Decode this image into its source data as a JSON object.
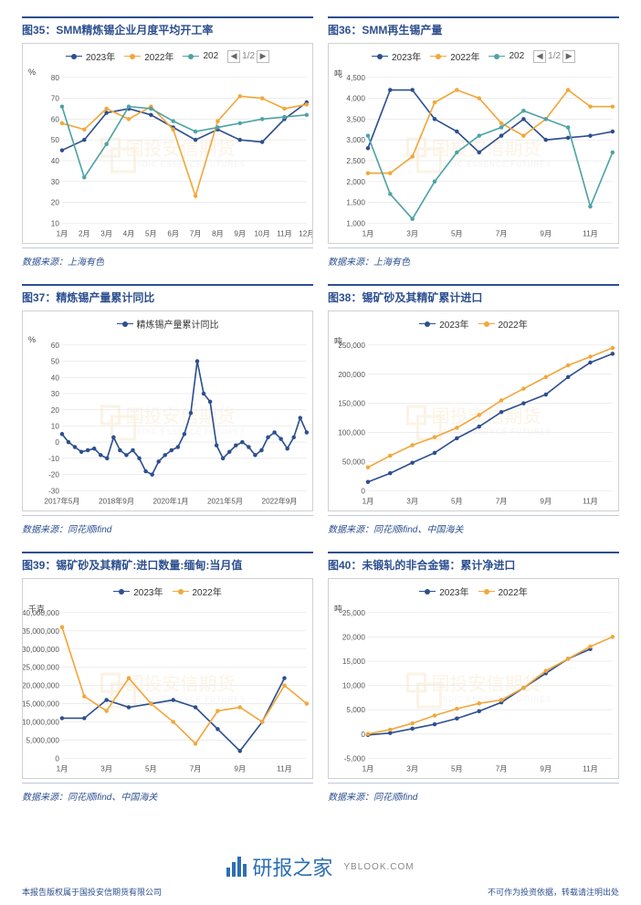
{
  "watermark": {
    "text": "国投安信期货",
    "sub": "SDIC ESSENCE FUTURES"
  },
  "footer": {
    "brand": "研报之家",
    "url": "YBLOOK.COM",
    "left": "本报告版权属于国投安信期货有限公司",
    "right": "不可作为投资依据，转载请注明出处"
  },
  "charts": [
    {
      "id": "c35",
      "title": "图35：SMM精炼锡企业月度平均开工率",
      "source": "数据来源：上海有色",
      "unit": "%",
      "pager": "1/2",
      "legend": [
        {
          "label": "2023年",
          "color": "#2d4f8f"
        },
        {
          "label": "2022年",
          "color": "#f2a73b"
        },
        {
          "label": "202",
          "color": "#4fa3a5"
        }
      ],
      "x_labels": [
        "1月",
        "2月",
        "3月",
        "4月",
        "5月",
        "6月",
        "7月",
        "8月",
        "9月",
        "10月",
        "11月",
        "12月"
      ],
      "ylim": [
        10,
        80
      ],
      "yticks": [
        10,
        20,
        30,
        40,
        50,
        60,
        70,
        80
      ],
      "grid_color": "#e6e6e6",
      "bg": "#ffffff",
      "series": [
        {
          "color": "#2d4f8f",
          "values": [
            45,
            50,
            63,
            65,
            62,
            56,
            50,
            55,
            50,
            49,
            60,
            68
          ]
        },
        {
          "color": "#f2a73b",
          "values": [
            58,
            55,
            65,
            60,
            66,
            55,
            23,
            59,
            71,
            70,
            65,
            67
          ]
        },
        {
          "color": "#4fa3a5",
          "values": [
            66,
            32,
            48,
            66,
            65,
            59,
            54,
            56,
            58,
            60,
            61,
            62
          ]
        }
      ]
    },
    {
      "id": "c36",
      "title": "图36：SMM再生锡产量",
      "source": "数据来源：上海有色",
      "unit": "吨",
      "pager": "1/2",
      "legend": [
        {
          "label": "2023年",
          "color": "#2d4f8f"
        },
        {
          "label": "2022年",
          "color": "#f2a73b"
        },
        {
          "label": "202",
          "color": "#4fa3a5"
        }
      ],
      "x_labels": [
        "1月",
        "",
        "3月",
        "",
        "5月",
        "",
        "7月",
        "",
        "9月",
        "",
        "11月",
        ""
      ],
      "ylim": [
        1000,
        4500
      ],
      "yticks": [
        1000,
        1500,
        2000,
        2500,
        3000,
        3500,
        4000,
        4500
      ],
      "grid_color": "#e6e6e6",
      "bg": "#ffffff",
      "series": [
        {
          "color": "#2d4f8f",
          "values": [
            2800,
            4200,
            4200,
            3500,
            3200,
            2700,
            3100,
            3500,
            3000,
            3050,
            3100,
            3200
          ]
        },
        {
          "color": "#f2a73b",
          "values": [
            2200,
            2200,
            2600,
            3900,
            4200,
            4000,
            3400,
            3100,
            3500,
            4200,
            3800,
            3800
          ]
        },
        {
          "color": "#4fa3a5",
          "values": [
            3100,
            1700,
            1100,
            2000,
            2700,
            3100,
            3300,
            3700,
            3500,
            3300,
            1400,
            2700
          ]
        }
      ]
    },
    {
      "id": "c37",
      "title": "图37：精炼锡产量累计同比",
      "source": "数据来源：同花顺ifind",
      "unit": "%",
      "pager": null,
      "legend": [
        {
          "label": "精炼锡产量累计同比",
          "color": "#2d4f8f"
        }
      ],
      "x_labels": [
        "2017年5月",
        "",
        "2018年9月",
        "",
        "2020年1月",
        "",
        "2021年5月",
        "",
        "2022年9月",
        ""
      ],
      "ylim": [
        -30,
        60
      ],
      "yticks": [
        -30,
        -20,
        -10,
        0,
        10,
        20,
        30,
        40,
        50,
        60
      ],
      "grid_color": "#e6e6e6",
      "bg": "#ffffff",
      "series": [
        {
          "color": "#2d4f8f",
          "values": [
            5,
            0,
            -3,
            -6,
            -5,
            -4,
            -8,
            -10,
            3,
            -5,
            -8,
            -5,
            -10,
            -18,
            -20,
            -12,
            -8,
            -5,
            -3,
            5,
            18,
            50,
            30,
            25,
            -2,
            -10,
            -6,
            -2,
            0,
            -3,
            -8,
            -5,
            3,
            6,
            2,
            -4,
            3,
            15,
            6
          ]
        }
      ]
    },
    {
      "id": "c38",
      "title": "图38：锡矿砂及其精矿累计进口",
      "source": "数据来源：同花顺ifind、中国海关",
      "unit": "吨",
      "pager": null,
      "legend": [
        {
          "label": "2023年",
          "color": "#2d4f8f"
        },
        {
          "label": "2022年",
          "color": "#f2a73b"
        }
      ],
      "x_labels": [
        "1月",
        "",
        "3月",
        "",
        "5月",
        "",
        "7月",
        "",
        "9月",
        "",
        "11月",
        ""
      ],
      "ylim": [
        0,
        250000
      ],
      "yticks": [
        0,
        50000,
        100000,
        150000,
        200000,
        250000
      ],
      "grid_color": "#e6e6e6",
      "bg": "#ffffff",
      "series": [
        {
          "color": "#2d4f8f",
          "values": [
            15000,
            30000,
            48000,
            65000,
            90000,
            110000,
            135000,
            150000,
            165000,
            195000,
            220000,
            235000
          ]
        },
        {
          "color": "#f2a73b",
          "values": [
            40000,
            60000,
            78000,
            92000,
            108000,
            130000,
            155000,
            175000,
            195000,
            215000,
            230000,
            245000
          ]
        }
      ]
    },
    {
      "id": "c39",
      "title": "图39：锡矿砂及其精矿:进口数量:缅甸:当月值",
      "source": "数据来源：同花顺ifind、中国海关",
      "unit": "千克",
      "pager": null,
      "legend": [
        {
          "label": "2023年",
          "color": "#2d4f8f"
        },
        {
          "label": "2022年",
          "color": "#f2a73b"
        }
      ],
      "x_labels": [
        "1月",
        "",
        "3月",
        "",
        "5月",
        "",
        "7月",
        "",
        "9月",
        "",
        "11月",
        ""
      ],
      "ylim": [
        0,
        40000000
      ],
      "yticks": [
        0,
        5000000,
        10000000,
        15000000,
        20000000,
        25000000,
        30000000,
        35000000,
        40000000
      ],
      "grid_color": "#e6e6e6",
      "bg": "#ffffff",
      "series": [
        {
          "color": "#2d4f8f",
          "values": [
            11000000,
            11000000,
            16000000,
            14000000,
            15000000,
            16000000,
            14000000,
            8000000,
            2000000,
            10000000,
            22000000,
            null
          ]
        },
        {
          "color": "#f2a73b",
          "values": [
            36000000,
            17000000,
            13000000,
            22000000,
            15000000,
            10000000,
            4000000,
            13000000,
            14000000,
            10000000,
            20000000,
            15000000
          ]
        }
      ]
    },
    {
      "id": "c40",
      "title": "图40：未锻轧的非合金锡：累计净进口",
      "source": "数据来源：同花顺ifind",
      "unit": "吨",
      "pager": null,
      "legend": [
        {
          "label": "2023年",
          "color": "#2d4f8f"
        },
        {
          "label": "2022年",
          "color": "#f2a73b"
        }
      ],
      "x_labels": [
        "1月",
        "",
        "3月",
        "",
        "5月",
        "",
        "7月",
        "",
        "9月",
        "",
        "11月",
        ""
      ],
      "ylim": [
        -5000,
        25000
      ],
      "yticks": [
        -5000,
        0,
        5000,
        10000,
        15000,
        20000,
        25000
      ],
      "grid_color": "#e6e6e6",
      "bg": "#ffffff",
      "series": [
        {
          "color": "#2d4f8f",
          "values": [
            -200,
            200,
            1100,
            2000,
            3200,
            4700,
            6500,
            9500,
            12500,
            15500,
            17500,
            null
          ]
        },
        {
          "color": "#f2a73b",
          "values": [
            0,
            900,
            2200,
            3800,
            5200,
            6300,
            7000,
            9500,
            13000,
            15500,
            18000,
            20000
          ]
        }
      ]
    }
  ]
}
